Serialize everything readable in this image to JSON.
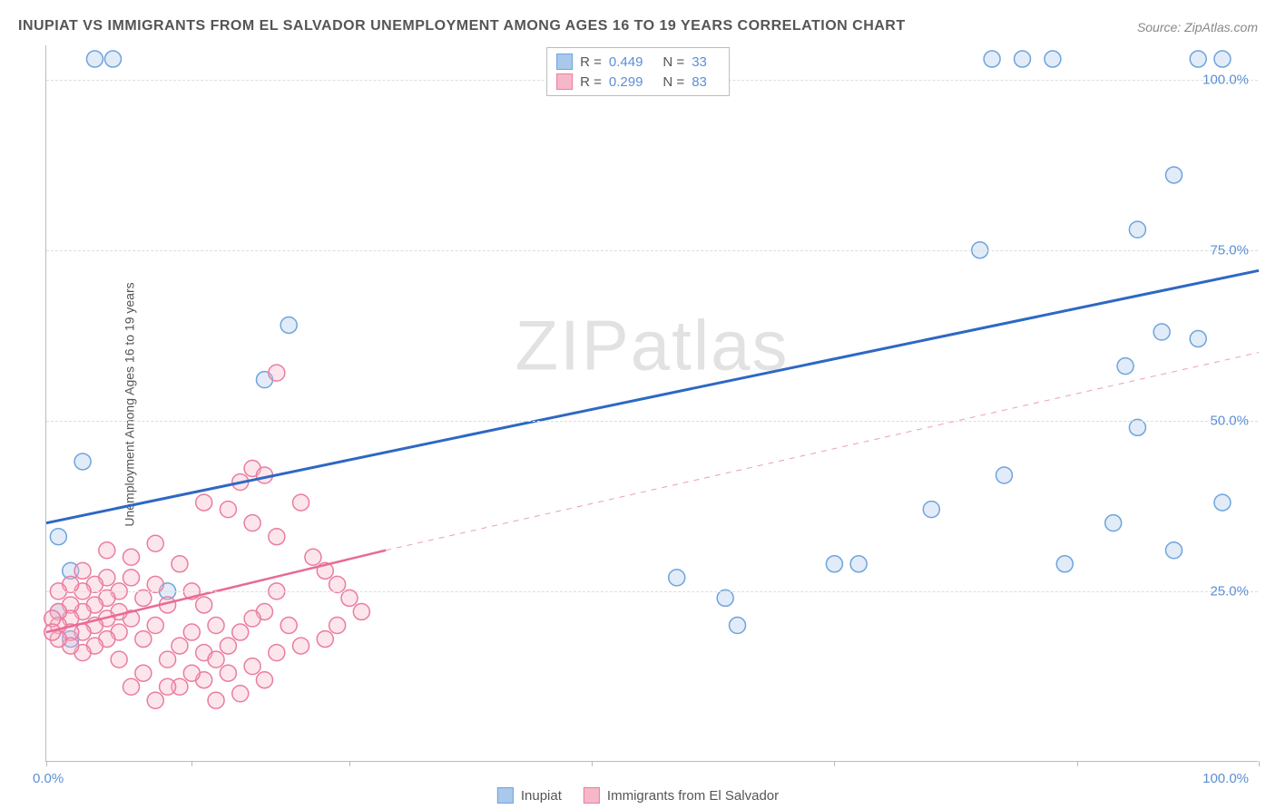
{
  "title": "INUPIAT VS IMMIGRANTS FROM EL SALVADOR UNEMPLOYMENT AMONG AGES 16 TO 19 YEARS CORRELATION CHART",
  "source": "Source: ZipAtlas.com",
  "ylabel": "Unemployment Among Ages 16 to 19 years",
  "watermark": "ZIPatlas",
  "chart": {
    "type": "scatter",
    "xlim": [
      0,
      100
    ],
    "ylim": [
      0,
      105
    ],
    "ytick_values": [
      25,
      50,
      75,
      100
    ],
    "ytick_labels": [
      "25.0%",
      "50.0%",
      "75.0%",
      "100.0%"
    ],
    "xtick_positions": [
      0,
      12,
      25,
      45,
      65,
      85,
      100
    ],
    "xtick_label_left": "0.0%",
    "xtick_label_right": "100.0%",
    "grid_color": "#dddddd",
    "axis_color": "#bbbbbb",
    "background_color": "#ffffff",
    "marker_radius": 9,
    "marker_fill_opacity": 0.35,
    "marker_stroke_width": 1.5,
    "series": [
      {
        "name": "Inupiat",
        "color_fill": "#a8c8ec",
        "color_stroke": "#6fa3dd",
        "R": "0.449",
        "N": "33",
        "points": [
          [
            4,
            103
          ],
          [
            5.5,
            103
          ],
          [
            78,
            103
          ],
          [
            80.5,
            103
          ],
          [
            83,
            103
          ],
          [
            95,
            103
          ],
          [
            97,
            103
          ],
          [
            93,
            86
          ],
          [
            90,
            78
          ],
          [
            77,
            75
          ],
          [
            92,
            63
          ],
          [
            95,
            62
          ],
          [
            89,
            58
          ],
          [
            90,
            49
          ],
          [
            20,
            64
          ],
          [
            18,
            56
          ],
          [
            97,
            38
          ],
          [
            93,
            31
          ],
          [
            84,
            29
          ],
          [
            88,
            35
          ],
          [
            79,
            42
          ],
          [
            65,
            29
          ],
          [
            67,
            29
          ],
          [
            73,
            37
          ],
          [
            52,
            27
          ],
          [
            56,
            24
          ],
          [
            57,
            20
          ],
          [
            3,
            44
          ],
          [
            1,
            33
          ],
          [
            2,
            28
          ],
          [
            2,
            18
          ],
          [
            10,
            25
          ],
          [
            1,
            22
          ]
        ],
        "trend": {
          "x1": 0,
          "y1": 35,
          "x2": 100,
          "y2": 72,
          "stroke_width": 3,
          "dash": "none",
          "color": "#2d68c4"
        }
      },
      {
        "name": "Immigrants from El Salvador",
        "color_fill": "#f6b8c9",
        "color_stroke": "#ea7ca0",
        "R": "0.299",
        "N": "83",
        "points": [
          [
            19,
            57
          ],
          [
            17,
            43
          ],
          [
            18,
            42
          ],
          [
            16,
            41
          ],
          [
            15,
            37
          ],
          [
            17,
            35
          ],
          [
            13,
            38
          ],
          [
            19,
            33
          ],
          [
            21,
            38
          ],
          [
            22,
            30
          ],
          [
            23,
            28
          ],
          [
            24,
            26
          ],
          [
            25,
            24
          ],
          [
            26,
            22
          ],
          [
            24,
            20
          ],
          [
            23,
            18
          ],
          [
            19,
            25
          ],
          [
            18,
            22
          ],
          [
            17,
            21
          ],
          [
            16,
            19
          ],
          [
            15,
            17
          ],
          [
            14,
            20
          ],
          [
            13,
            23
          ],
          [
            13,
            16
          ],
          [
            12,
            25
          ],
          [
            12,
            19
          ],
          [
            11,
            17
          ],
          [
            10,
            23
          ],
          [
            10,
            15
          ],
          [
            9,
            26
          ],
          [
            9,
            20
          ],
          [
            8,
            24
          ],
          [
            8,
            18
          ],
          [
            7,
            27
          ],
          [
            7,
            21
          ],
          [
            6,
            25
          ],
          [
            6,
            22
          ],
          [
            6,
            19
          ],
          [
            5,
            27
          ],
          [
            5,
            24
          ],
          [
            5,
            21
          ],
          [
            5,
            18
          ],
          [
            4,
            26
          ],
          [
            4,
            23
          ],
          [
            4,
            20
          ],
          [
            4,
            17
          ],
          [
            3,
            28
          ],
          [
            3,
            25
          ],
          [
            3,
            22
          ],
          [
            3,
            19
          ],
          [
            3,
            16
          ],
          [
            2,
            26
          ],
          [
            2,
            23
          ],
          [
            2,
            21
          ],
          [
            2,
            19
          ],
          [
            2,
            17
          ],
          [
            1,
            25
          ],
          [
            1,
            22
          ],
          [
            1,
            20
          ],
          [
            1,
            18
          ],
          [
            0.5,
            21
          ],
          [
            0.5,
            19
          ],
          [
            11,
            11
          ],
          [
            13,
            12
          ],
          [
            15,
            13
          ],
          [
            16,
            10
          ],
          [
            14,
            9
          ],
          [
            12,
            13
          ],
          [
            10,
            11
          ],
          [
            8,
            13
          ],
          [
            7,
            11
          ],
          [
            9,
            9
          ],
          [
            6,
            15
          ],
          [
            17,
            14
          ],
          [
            19,
            16
          ],
          [
            20,
            20
          ],
          [
            21,
            17
          ],
          [
            18,
            12
          ],
          [
            14,
            15
          ],
          [
            11,
            29
          ],
          [
            9,
            32
          ],
          [
            7,
            30
          ],
          [
            5,
            31
          ]
        ],
        "trend_solid": {
          "x1": 0,
          "y1": 19,
          "x2": 28,
          "y2": 31,
          "stroke_width": 2.5,
          "color": "#e86b95"
        },
        "trend_dashed": {
          "x1": 28,
          "y1": 31,
          "x2": 100,
          "y2": 60,
          "stroke_width": 1,
          "dash": "6,6",
          "color": "#ea9fb6"
        }
      }
    ]
  },
  "legend_top": {
    "rows": [
      {
        "swatch_fill": "#a8c8ec",
        "swatch_stroke": "#6fa3dd",
        "r_label": "R =",
        "r_value": "0.449",
        "n_label": "N =",
        "n_value": "33"
      },
      {
        "swatch_fill": "#f6b8c9",
        "swatch_stroke": "#ea7ca0",
        "r_label": "R =",
        "r_value": "0.299",
        "n_label": "N =",
        "n_value": "83"
      }
    ]
  },
  "legend_bottom": {
    "items": [
      {
        "swatch_fill": "#a8c8ec",
        "swatch_stroke": "#6fa3dd",
        "label": "Inupiat"
      },
      {
        "swatch_fill": "#f6b8c9",
        "swatch_stroke": "#ea7ca0",
        "label": "Immigrants from El Salvador"
      }
    ]
  }
}
